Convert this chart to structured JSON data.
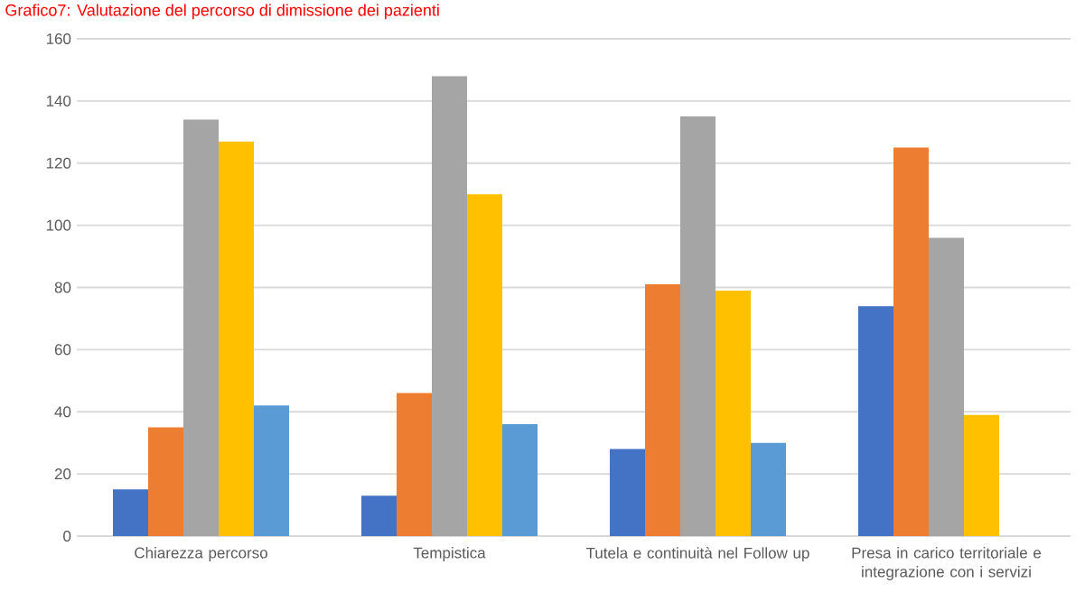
{
  "chart_data": {
    "type": "bar",
    "title": "Grafico7: Valutazione del percorso di dimissione dei pazienti",
    "categories": [
      "Chiarezza percorso",
      "Tempistica",
      "Tutela e continuità nel Follow up",
      "Presa in carico territoriale e integrazione con i servizi"
    ],
    "series": [
      {
        "color": "#4472c4",
        "values": [
          15,
          13,
          28,
          74
        ]
      },
      {
        "color": "#ed7d31",
        "values": [
          35,
          46,
          81,
          125
        ]
      },
      {
        "color": "#a5a5a5",
        "values": [
          134,
          148,
          135,
          96
        ]
      },
      {
        "color": "#ffc000",
        "values": [
          127,
          110,
          79,
          39
        ]
      },
      {
        "color": "#5b9bd5",
        "values": [
          42,
          36,
          30,
          null
        ]
      }
    ],
    "ylim": [
      0,
      160
    ],
    "yticks": [
      0,
      20,
      40,
      60,
      80,
      100,
      120,
      140,
      160
    ],
    "grid": "y"
  }
}
